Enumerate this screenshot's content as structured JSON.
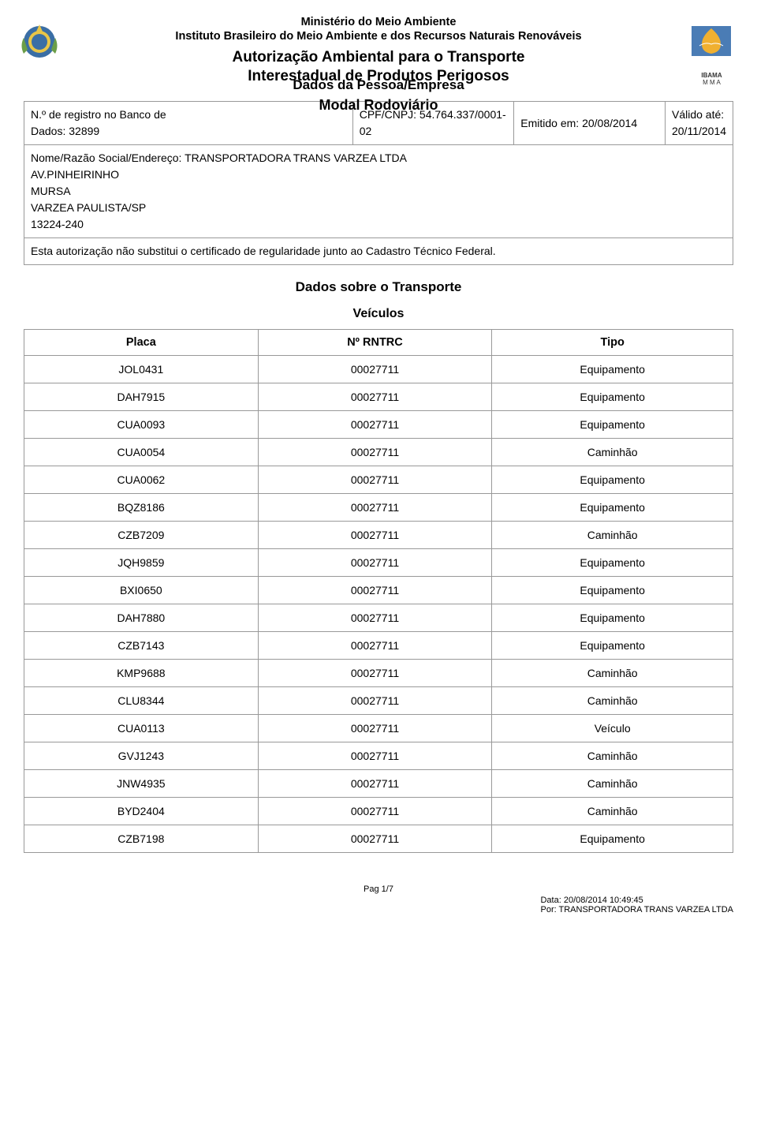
{
  "header": {
    "ministry": "Ministério do Meio Ambiente",
    "institute": "Instituto Brasileiro do Meio Ambiente e dos Recursos Naturais Renováveis",
    "title1": "Autorização Ambiental para o Transporte",
    "title2": "Interestadual de Produtos Perigosos",
    "modal": "Modal Rodoviário"
  },
  "sections": {
    "company": "Dados da Pessoa/Empresa",
    "transport": "Dados sobre o Transporte",
    "vehicles": "Veículos"
  },
  "company": {
    "reg_label1": "N.º de registro no Banco de",
    "reg_label2": "Dados: 32899",
    "cpf_label": "CPF/CNPJ: 54.764.337/0001-02",
    "emitido_label": "Emitido em: 20/08/2014",
    "valido_label": "Válido até: 20/11/2014",
    "name_line1": "Nome/Razão Social/Endereço: TRANSPORTADORA TRANS VARZEA LTDA",
    "name_line2": "AV.PINHEIRINHO",
    "name_line3": "MURSA",
    "name_line4": "VARZEA PAULISTA/SP",
    "name_line5": "13224-240",
    "auth_note": "Esta autorização não substitui o certificado de regularidade junto ao Cadastro Técnico Federal."
  },
  "vehicles_table": {
    "headers": {
      "placa": "Placa",
      "rntrc": "Nº RNTRC",
      "tipo": "Tipo"
    },
    "rows": [
      {
        "placa": "JOL0431",
        "rntrc": "00027711",
        "tipo": "Equipamento"
      },
      {
        "placa": "DAH7915",
        "rntrc": "00027711",
        "tipo": "Equipamento"
      },
      {
        "placa": "CUA0093",
        "rntrc": "00027711",
        "tipo": "Equipamento"
      },
      {
        "placa": "CUA0054",
        "rntrc": "00027711",
        "tipo": "Caminhão"
      },
      {
        "placa": "CUA0062",
        "rntrc": "00027711",
        "tipo": "Equipamento"
      },
      {
        "placa": "BQZ8186",
        "rntrc": "00027711",
        "tipo": "Equipamento"
      },
      {
        "placa": "CZB7209",
        "rntrc": "00027711",
        "tipo": "Caminhão"
      },
      {
        "placa": "JQH9859",
        "rntrc": "00027711",
        "tipo": "Equipamento"
      },
      {
        "placa": "BXI0650",
        "rntrc": "00027711",
        "tipo": "Equipamento"
      },
      {
        "placa": "DAH7880",
        "rntrc": "00027711",
        "tipo": "Equipamento"
      },
      {
        "placa": "CZB7143",
        "rntrc": "00027711",
        "tipo": "Equipamento"
      },
      {
        "placa": "KMP9688",
        "rntrc": "00027711",
        "tipo": "Caminhão"
      },
      {
        "placa": "CLU8344",
        "rntrc": "00027711",
        "tipo": "Caminhão"
      },
      {
        "placa": "CUA0113",
        "rntrc": "00027711",
        "tipo": "Veículo"
      },
      {
        "placa": "GVJ1243",
        "rntrc": "00027711",
        "tipo": "Caminhão"
      },
      {
        "placa": "JNW4935",
        "rntrc": "00027711",
        "tipo": "Caminhão"
      },
      {
        "placa": "BYD2404",
        "rntrc": "00027711",
        "tipo": "Caminhão"
      },
      {
        "placa": "CZB7198",
        "rntrc": "00027711",
        "tipo": "Equipamento"
      }
    ]
  },
  "footer": {
    "page": "Pag 1/7",
    "data": "Data: 20/08/2014 10:49:45",
    "por": "Por: TRANSPORTADORA TRANS VARZEA LTDA"
  },
  "logos": {
    "right_top": "IBAMA",
    "right_bot": "M M A"
  },
  "colors": {
    "border": "#999999",
    "text": "#000000",
    "background": "#ffffff",
    "logo_blue": "#3a6ea5",
    "logo_green": "#6b9e48",
    "logo_yellow": "#e8c547",
    "ibama_blue": "#4a7cb5",
    "ibama_yellow": "#f0b030"
  }
}
